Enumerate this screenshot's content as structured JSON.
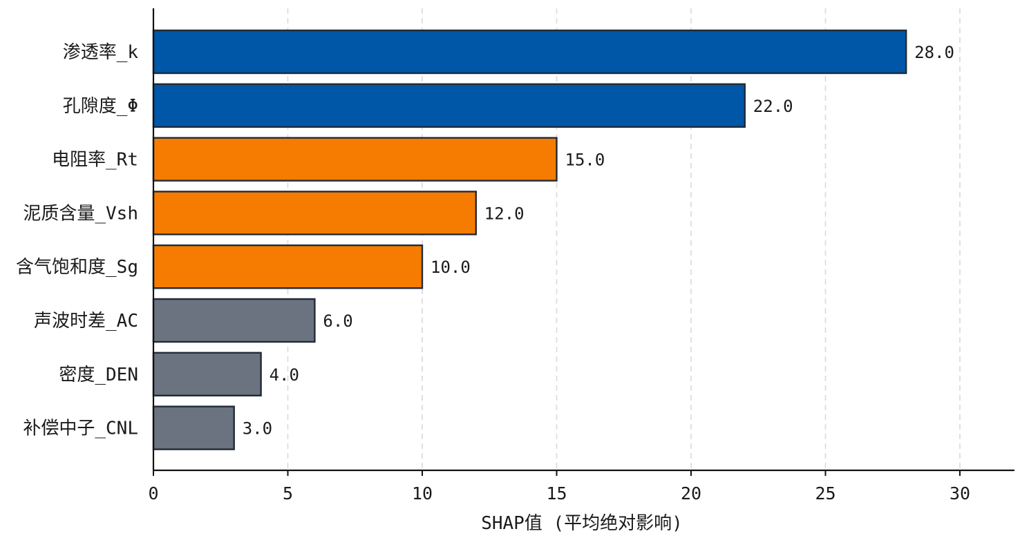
{
  "chart_data": {
    "type": "bar",
    "orientation": "horizontal",
    "categories": [
      "渗透率_k",
      "孔隙度_Φ",
      "电阻率_Rt",
      "泥质含量_Vsh",
      "含气饱和度_Sg",
      "声波时差_AC",
      "密度_DEN",
      "补偿中子_CNL"
    ],
    "values": [
      28.0,
      22.0,
      15.0,
      12.0,
      10.0,
      6.0,
      4.0,
      3.0
    ],
    "value_labels": [
      "28.0",
      "22.0",
      "15.0",
      "12.0",
      "10.0",
      "6.0",
      "4.0",
      "3.0"
    ],
    "bar_colors": [
      "#0057a8",
      "#0057a8",
      "#f57c00",
      "#f57c00",
      "#f57c00",
      "#6b7280",
      "#6b7280",
      "#6b7280"
    ],
    "xlabel": "SHAP值 (平均绝对影响)",
    "ylabel": "",
    "title": "",
    "xlim": [
      0,
      32
    ],
    "xticks": [
      0,
      5,
      10,
      15,
      20,
      25,
      30
    ],
    "xtick_labels": [
      "0",
      "5",
      "10",
      "15",
      "20",
      "25",
      "30"
    ],
    "grid": "x-dashed"
  }
}
